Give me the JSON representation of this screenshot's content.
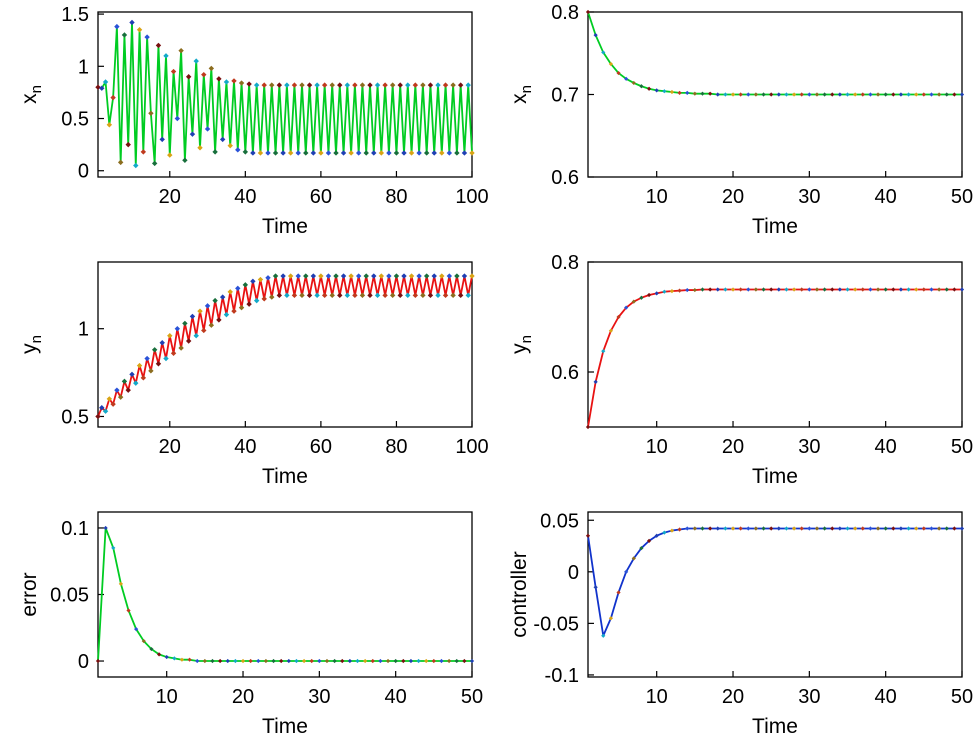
{
  "figure": {
    "background": "#ffffff",
    "axis_color": "#000000",
    "marker_palette": [
      "#7a1010",
      "#1f3fb4",
      "#12a9c9",
      "#d9a414",
      "#c03a1e",
      "#2a52d8",
      "#8c6d1f",
      "#186f3c"
    ]
  },
  "chart_data": [
    {
      "id": "xn-chaotic",
      "type": "line",
      "title": "",
      "xlabel": "Time",
      "ylabel": {
        "base": "x",
        "sub": "n"
      },
      "xlim": [
        1,
        100
      ],
      "ylim": [
        -0.06,
        1.52
      ],
      "xticks": [
        20,
        40,
        60,
        80,
        100
      ],
      "yticks": [
        0,
        0.5,
        1,
        1.5
      ],
      "line_color": "#00cc22",
      "x_start": 1,
      "values": [
        0.8,
        0.79,
        0.85,
        0.44,
        0.7,
        1.38,
        0.08,
        1.3,
        0.25,
        1.42,
        0.05,
        1.35,
        0.18,
        1.28,
        0.55,
        0.07,
        1.2,
        0.3,
        1.1,
        0.15,
        0.95,
        0.5,
        1.15,
        0.1,
        0.9,
        0.35,
        1.05,
        0.22,
        0.92,
        0.4,
        0.98,
        0.18,
        0.88,
        0.3,
        0.85,
        0.24,
        0.86,
        0.2,
        0.84,
        0.18,
        0.83,
        0.17,
        0.82,
        0.17,
        0.82,
        0.17,
        0.82,
        0.17,
        0.82,
        0.17,
        0.82,
        0.17,
        0.82,
        0.17,
        0.82,
        0.17,
        0.82,
        0.17,
        0.82,
        0.17,
        0.82,
        0.17,
        0.82,
        0.17,
        0.82,
        0.17,
        0.82,
        0.17,
        0.82,
        0.17,
        0.82,
        0.17,
        0.82,
        0.17,
        0.82,
        0.17,
        0.82,
        0.17,
        0.82,
        0.17,
        0.82,
        0.17,
        0.82,
        0.17,
        0.82,
        0.17,
        0.82,
        0.17,
        0.82,
        0.17,
        0.82,
        0.17,
        0.82,
        0.17,
        0.82,
        0.17,
        0.82,
        0.17,
        0.82,
        0.17
      ]
    },
    {
      "id": "xn-controlled",
      "type": "line",
      "title": "",
      "xlabel": "Time",
      "ylabel": {
        "base": "x",
        "sub": "n"
      },
      "xlim": [
        1,
        50
      ],
      "ylim": [
        0.6,
        0.8
      ],
      "xticks": [
        10,
        20,
        30,
        40,
        50
      ],
      "yticks": [
        0.6,
        0.7,
        0.8
      ],
      "line_color": "#00cc22",
      "x_start": 1,
      "values": [
        0.8,
        0.772,
        0.751,
        0.737,
        0.726,
        0.719,
        0.714,
        0.71,
        0.707,
        0.705,
        0.704,
        0.703,
        0.702,
        0.702,
        0.701,
        0.701,
        0.701,
        0.7,
        0.7,
        0.7,
        0.7,
        0.7,
        0.7,
        0.7,
        0.7,
        0.7,
        0.7,
        0.7,
        0.7,
        0.7,
        0.7,
        0.7,
        0.7,
        0.7,
        0.7,
        0.7,
        0.7,
        0.7,
        0.7,
        0.7,
        0.7,
        0.7,
        0.7,
        0.7,
        0.7,
        0.7,
        0.7,
        0.7,
        0.7,
        0.7
      ]
    },
    {
      "id": "yn-chaotic",
      "type": "line",
      "title": "",
      "xlabel": "Time",
      "ylabel": {
        "base": "y",
        "sub": "n"
      },
      "xlim": [
        1,
        100
      ],
      "ylim": [
        0.44,
        1.38
      ],
      "xticks": [
        20,
        40,
        60,
        80,
        100
      ],
      "yticks": [
        0.5,
        1
      ],
      "line_color": "#e81212",
      "x_start": 1,
      "values": [
        0.5,
        0.55,
        0.53,
        0.6,
        0.57,
        0.65,
        0.61,
        0.7,
        0.65,
        0.74,
        0.69,
        0.79,
        0.72,
        0.83,
        0.76,
        0.88,
        0.8,
        0.92,
        0.83,
        0.96,
        0.86,
        1.0,
        0.89,
        1.03,
        0.93,
        1.07,
        0.96,
        1.1,
        0.99,
        1.13,
        1.02,
        1.16,
        1.05,
        1.18,
        1.08,
        1.21,
        1.1,
        1.23,
        1.12,
        1.25,
        1.14,
        1.27,
        1.16,
        1.28,
        1.17,
        1.29,
        1.18,
        1.3,
        1.19,
        1.3,
        1.19,
        1.3,
        1.19,
        1.3,
        1.19,
        1.3,
        1.19,
        1.3,
        1.19,
        1.3,
        1.19,
        1.3,
        1.19,
        1.3,
        1.19,
        1.3,
        1.19,
        1.3,
        1.19,
        1.3,
        1.19,
        1.3,
        1.19,
        1.3,
        1.19,
        1.3,
        1.19,
        1.3,
        1.19,
        1.3,
        1.19,
        1.3,
        1.19,
        1.3,
        1.19,
        1.3,
        1.19,
        1.3,
        1.19,
        1.3,
        1.19,
        1.3,
        1.19,
        1.3,
        1.19,
        1.3,
        1.19,
        1.3,
        1.19,
        1.3
      ]
    },
    {
      "id": "yn-controlled",
      "type": "line",
      "title": "",
      "xlabel": "Time",
      "ylabel": {
        "base": "y",
        "sub": "n"
      },
      "xlim": [
        1,
        50
      ],
      "ylim": [
        0.5,
        0.8
      ],
      "xticks": [
        10,
        20,
        30,
        40,
        50
      ],
      "yticks": [
        0.6,
        0.8
      ],
      "line_color": "#e81212",
      "x_start": 1,
      "values": [
        0.5,
        0.582,
        0.638,
        0.675,
        0.7,
        0.717,
        0.728,
        0.735,
        0.74,
        0.743,
        0.746,
        0.747,
        0.748,
        0.749,
        0.749,
        0.75,
        0.75,
        0.75,
        0.75,
        0.75,
        0.75,
        0.75,
        0.75,
        0.75,
        0.75,
        0.75,
        0.75,
        0.75,
        0.75,
        0.75,
        0.75,
        0.75,
        0.75,
        0.75,
        0.75,
        0.75,
        0.75,
        0.75,
        0.75,
        0.75,
        0.75,
        0.75,
        0.75,
        0.75,
        0.75,
        0.75,
        0.75,
        0.75,
        0.75,
        0.75
      ]
    },
    {
      "id": "error",
      "type": "line",
      "title": "",
      "xlabel": "Time",
      "ylabel": {
        "base": "error",
        "sub": ""
      },
      "xlim": [
        1,
        50
      ],
      "ylim": [
        -0.012,
        0.112
      ],
      "xticks": [
        10,
        20,
        30,
        40,
        50
      ],
      "yticks": [
        0,
        0.05,
        0.1
      ],
      "line_color": "#00cc22",
      "x_start": 1,
      "values": [
        0.0,
        0.1,
        0.085,
        0.058,
        0.038,
        0.024,
        0.015,
        0.009,
        0.005,
        0.003,
        0.002,
        0.001,
        0.001,
        0.0,
        0.0,
        0.0,
        0.0,
        0.0,
        0.0,
        0.0,
        0.0,
        0.0,
        0.0,
        0.0,
        0.0,
        0.0,
        0.0,
        0.0,
        0.0,
        0.0,
        0.0,
        0.0,
        0.0,
        0.0,
        0.0,
        0.0,
        0.0,
        0.0,
        0.0,
        0.0,
        0.0,
        0.0,
        0.0,
        0.0,
        0.0,
        0.0,
        0.0,
        0.0,
        0.0,
        0.0
      ]
    },
    {
      "id": "controller",
      "type": "line",
      "title": "",
      "xlabel": "Time",
      "ylabel": {
        "base": "controller",
        "sub": ""
      },
      "xlim": [
        1,
        50
      ],
      "ylim": [
        -0.102,
        0.058
      ],
      "xticks": [
        10,
        20,
        30,
        40,
        50
      ],
      "yticks": [
        -0.1,
        -0.05,
        0,
        0.05
      ],
      "line_color": "#1133cc",
      "x_start": 1,
      "values": [
        0.035,
        -0.015,
        -0.062,
        -0.045,
        -0.02,
        0.0,
        0.013,
        0.023,
        0.03,
        0.035,
        0.038,
        0.04,
        0.041,
        0.042,
        0.042,
        0.042,
        0.042,
        0.042,
        0.042,
        0.042,
        0.042,
        0.042,
        0.042,
        0.042,
        0.042,
        0.042,
        0.042,
        0.042,
        0.042,
        0.042,
        0.042,
        0.042,
        0.042,
        0.042,
        0.042,
        0.042,
        0.042,
        0.042,
        0.042,
        0.042,
        0.042,
        0.042,
        0.042,
        0.042,
        0.042,
        0.042,
        0.042,
        0.042,
        0.042,
        0.042
      ]
    }
  ]
}
